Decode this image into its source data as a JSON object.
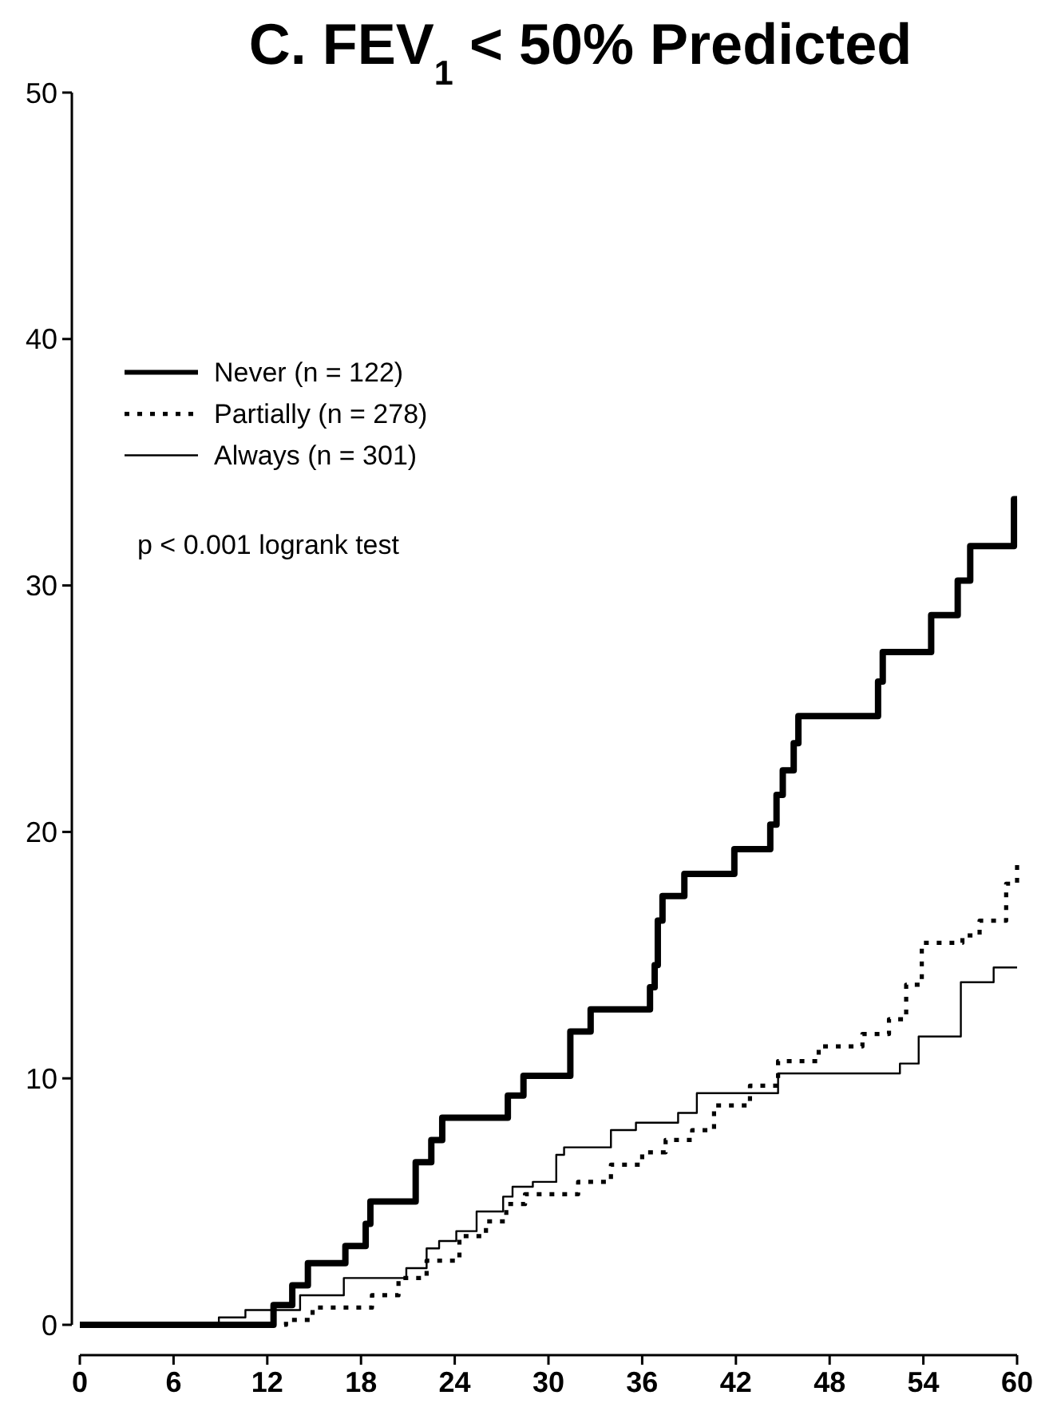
{
  "chart_data": {
    "type": "step",
    "title": "C. FEV$_{1}$ < 50% Predicted",
    "annotations": [
      "p < 0.001 logrank test"
    ],
    "xlim": [
      0,
      60
    ],
    "xticks": [
      0,
      6,
      12,
      18,
      24,
      30,
      36,
      42,
      48,
      54,
      60
    ],
    "ylim": [
      0,
      50
    ],
    "yticks": [
      0,
      10,
      20,
      30,
      40,
      50
    ],
    "legend": "top left",
    "grid": false,
    "series": [
      {
        "name": "Never  (n = 122)",
        "color": "#000000",
        "line_style": "solid",
        "x": [
          0,
          12.4,
          13.6,
          14.6,
          17.0,
          18.3,
          18.6,
          21.5,
          22.5,
          23.2,
          27.4,
          28.4,
          31.4,
          32.7,
          36.5,
          36.8,
          37.0,
          37.3,
          38.7,
          41.9,
          44.2,
          44.6,
          45.0,
          45.7,
          46.0,
          51.1,
          51.4,
          54.5,
          56.2,
          57.0,
          59.8,
          60
        ],
        "values": [
          0,
          0.8,
          1.6,
          2.5,
          3.2,
          4.1,
          5.0,
          6.6,
          7.5,
          8.4,
          9.3,
          10.1,
          11.9,
          12.8,
          13.7,
          14.6,
          16.4,
          17.4,
          18.3,
          19.3,
          20.3,
          21.5,
          22.5,
          23.6,
          24.7,
          26.1,
          27.3,
          28.8,
          30.2,
          31.6,
          33.5,
          33.5
        ]
      },
      {
        "name": "Partially  (n = 278)",
        "color": "#000000",
        "line_style": "dotted",
        "x": [
          0,
          13.2,
          14.9,
          18.7,
          20.4,
          22.2,
          24.3,
          26.0,
          27.3,
          28.5,
          31.9,
          34.0,
          36.0,
          37.5,
          39.2,
          40.6,
          42.9,
          44.7,
          47.3,
          50.1,
          51.8,
          52.9,
          53.9,
          56.5,
          57.6,
          59.3,
          60
        ],
        "values": [
          0,
          0.2,
          0.7,
          1.2,
          1.9,
          2.6,
          3.6,
          4.2,
          4.9,
          5.3,
          5.8,
          6.5,
          7.0,
          7.5,
          7.9,
          8.9,
          9.7,
          10.7,
          11.3,
          11.8,
          12.4,
          13.8,
          15.5,
          15.8,
          16.4,
          17.9,
          18.7
        ]
      },
      {
        "name": "Always  (n = 301)",
        "color": "#000000",
        "line_style": "solid",
        "x": [
          0,
          8.9,
          10.6,
          14.1,
          16.9,
          20.9,
          22.2,
          23.0,
          24.1,
          25.4,
          27.1,
          27.7,
          29.0,
          30.5,
          31.0,
          34.0,
          35.6,
          38.3,
          39.5,
          44.7,
          52.5,
          53.7,
          56.4,
          58.5,
          60
        ],
        "values": [
          0,
          0.3,
          0.6,
          1.2,
          1.9,
          2.3,
          3.1,
          3.4,
          3.8,
          4.6,
          5.2,
          5.6,
          5.8,
          6.9,
          7.2,
          7.9,
          8.2,
          8.6,
          9.4,
          10.2,
          10.6,
          11.7,
          13.9,
          14.5,
          14.5
        ]
      }
    ]
  }
}
